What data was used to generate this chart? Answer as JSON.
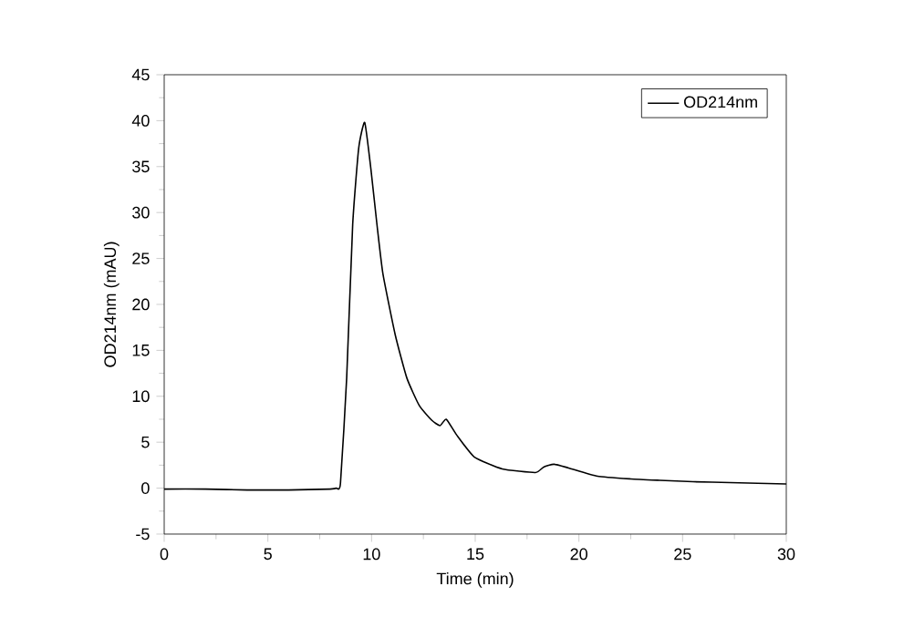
{
  "chart_data": {
    "type": "line",
    "xlabel": "Time (min)",
    "ylabel": "OD214nm (mAU)",
    "xlim": [
      0,
      30
    ],
    "ylim": [
      -5,
      45
    ],
    "xticks": [
      0,
      5,
      10,
      15,
      20,
      25,
      30
    ],
    "yticks": [
      -5,
      0,
      5,
      10,
      15,
      20,
      25,
      30,
      35,
      40,
      45
    ],
    "grid": false,
    "legend": "top right",
    "marker": "none",
    "line_style": "solid",
    "series": [
      {
        "name": "OD214nm",
        "color": "#000000",
        "x": [
          0,
          2,
          4,
          6,
          8,
          8.3,
          8.5,
          8.8,
          9.09,
          9.38,
          9.67,
          9.97,
          10.26,
          10.55,
          11.14,
          11.7,
          12.3,
          12.9,
          13.3,
          13.6,
          14.1,
          14.95,
          16.3,
          17.9,
          18.3,
          18.8,
          19.5,
          20.9,
          22.5,
          23.9,
          25.5,
          27.3,
          30
        ],
        "values": [
          -0.1,
          -0.1,
          -0.2,
          -0.2,
          -0.1,
          0,
          0.5,
          12,
          28.7,
          37,
          39.8,
          34.7,
          28.7,
          23.3,
          16.7,
          12,
          9,
          7.4,
          6.8,
          7.5,
          5.8,
          3.4,
          2.1,
          1.7,
          2.3,
          2.6,
          2.2,
          1.3,
          1,
          0.85,
          0.7,
          0.6,
          0.45
        ]
      }
    ]
  }
}
